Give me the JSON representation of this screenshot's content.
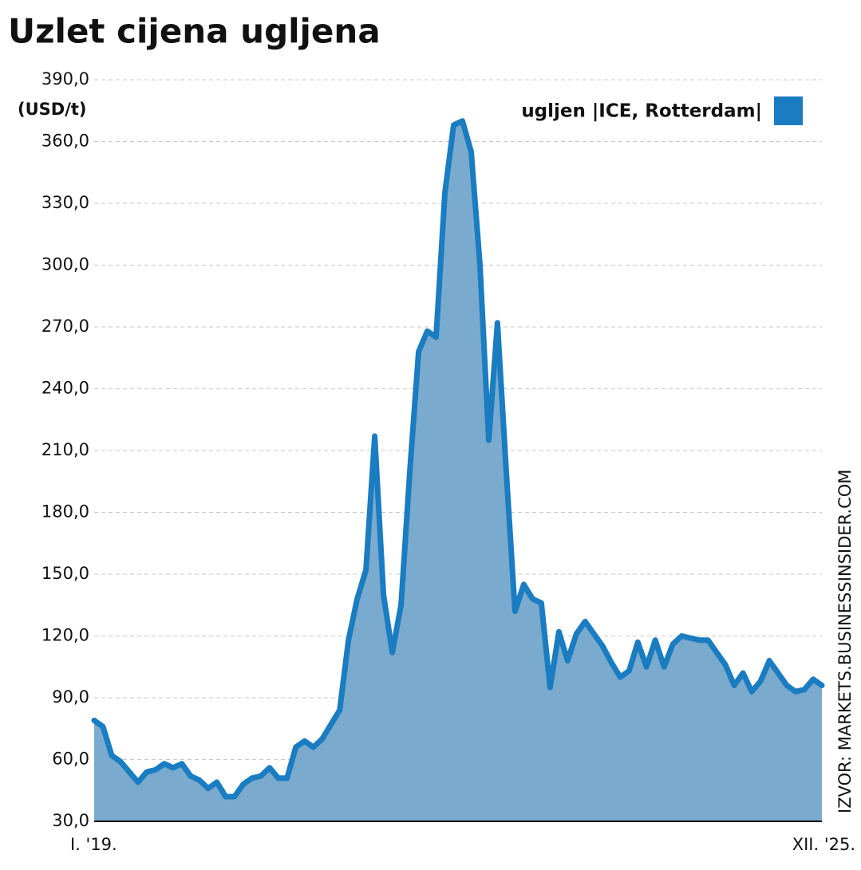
{
  "chart_data": {
    "type": "area",
    "title": "Uzlet cijena ugljena",
    "y_label": "(USD/t)",
    "source": "IZVOR: MARKETS.BUSINESSINSIDER.COM",
    "categories": [
      "I. '19.",
      null,
      null,
      null,
      null,
      null,
      null,
      null,
      null,
      null,
      null,
      null,
      null,
      null,
      null,
      null,
      null,
      null,
      null,
      null,
      null,
      null,
      null,
      null,
      null,
      null,
      null,
      null,
      null,
      null,
      null,
      null,
      null,
      null,
      null,
      null,
      null,
      null,
      null,
      null,
      null,
      null,
      null,
      null,
      null,
      null,
      null,
      null,
      null,
      null,
      null,
      null,
      null,
      null,
      null,
      null,
      null,
      null,
      null,
      null,
      null,
      null,
      null,
      null,
      null,
      null,
      null,
      null,
      null,
      null,
      null,
      null,
      null,
      null,
      null,
      null,
      null,
      null,
      null,
      null,
      null,
      null,
      null,
      "XII. '25."
    ],
    "series": [
      {
        "name": "ugljen |ICE, Rotterdam|",
        "color": "#1a7cc1",
        "fill": "#7aaacd",
        "values": [
          79,
          76,
          62,
          59,
          54,
          49,
          54,
          55,
          58,
          56,
          58,
          52,
          50,
          46,
          49,
          42,
          42,
          48,
          51,
          52,
          56,
          51,
          51,
          66,
          69,
          66,
          70,
          77,
          84,
          118,
          138,
          152,
          217,
          140,
          112,
          135,
          200,
          258,
          268,
          265,
          335,
          368,
          370,
          355,
          300,
          215,
          272,
          200,
          132,
          145,
          138,
          136,
          95,
          122,
          108,
          121,
          127,
          121,
          115,
          107,
          100,
          103,
          117,
          105,
          118,
          105,
          116,
          120,
          119,
          118,
          118,
          112,
          106,
          96,
          102,
          93,
          98,
          108,
          102,
          96,
          93,
          94,
          99,
          96
        ]
      }
    ],
    "ylim": [
      30,
      390
    ],
    "yticks": [
      {
        "value": 30,
        "label": "30,0"
      },
      {
        "value": 60,
        "label": "60,0"
      },
      {
        "value": 90,
        "label": "90,0"
      },
      {
        "value": 120,
        "label": "120,0"
      },
      {
        "value": 150,
        "label": "150,0"
      },
      {
        "value": 180,
        "label": "180,0"
      },
      {
        "value": 210,
        "label": "210,0"
      },
      {
        "value": 240,
        "label": "240,0"
      },
      {
        "value": 270,
        "label": "270,0"
      },
      {
        "value": 300,
        "label": "300,0"
      },
      {
        "value": 330,
        "label": "330,0"
      },
      {
        "value": 360,
        "label": "360,0"
      },
      {
        "value": 390,
        "label": "390,0"
      }
    ],
    "grid": true,
    "legend": "top-right"
  }
}
